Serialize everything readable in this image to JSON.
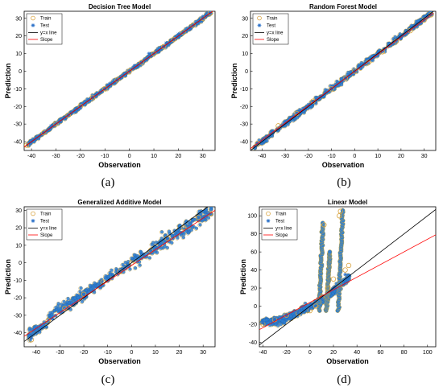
{
  "chart_data": [
    {
      "type": "scatter",
      "title": "Decision Tree Model",
      "xlabel": "Observation",
      "ylabel": "Prediction",
      "caption": "(a)",
      "xlim": [
        -43,
        35
      ],
      "ylim": [
        -45,
        34
      ],
      "xticks": [
        -40,
        -30,
        -20,
        -10,
        0,
        10,
        20,
        30
      ],
      "yticks": [
        -40,
        -30,
        -20,
        -10,
        0,
        10,
        20,
        30
      ],
      "legend_position": "top-left",
      "legend": [
        "Train",
        "Test",
        "y=x line",
        "Slope"
      ],
      "series": [
        {
          "name": "Train",
          "color": "#d9a441",
          "marker": "circle",
          "x": [
            -42,
            -35,
            -30,
            -25,
            -20,
            -15,
            -10,
            -5,
            0,
            5,
            10,
            14,
            18,
            22,
            26,
            30,
            33
          ],
          "y": [
            -42,
            -35,
            -30,
            -25,
            -20,
            -15,
            -10,
            -5,
            0,
            5,
            10,
            14,
            18,
            22,
            26,
            30,
            33
          ]
        },
        {
          "name": "Test",
          "color": "#2a70c8",
          "marker": "star",
          "x": [
            -32,
            -20,
            -8,
            2,
            8,
            12,
            15,
            20,
            25,
            30
          ],
          "y": [
            -31,
            -21,
            -7,
            3,
            10,
            11,
            16,
            21,
            24,
            31
          ]
        },
        {
          "name": "y=x line",
          "color": "#000000",
          "line": [
            [
              -43,
              -43
            ],
            [
              34,
              34
            ]
          ]
        },
        {
          "name": "Slope",
          "color": "#ff0000",
          "line": [
            [
              -43,
              -43
            ],
            [
              34,
              34
            ]
          ]
        }
      ]
    },
    {
      "type": "scatter",
      "title": "Random Forest Model",
      "xlabel": "Observation",
      "ylabel": "Prediction",
      "caption": "(b)",
      "xlim": [
        -45,
        35
      ],
      "ylim": [
        -45,
        34
      ],
      "xticks": [
        -40,
        -30,
        -20,
        -10,
        0,
        10,
        20,
        30
      ],
      "yticks": [
        -40,
        -30,
        -20,
        -10,
        0,
        10,
        20,
        30
      ],
      "legend_position": "top-left",
      "legend": [
        "Train",
        "Test",
        "y=x line",
        "Slope"
      ],
      "series": [
        {
          "name": "Train",
          "color": "#d9a441",
          "marker": "circle",
          "x": [
            -42,
            -33,
            -25,
            -18,
            -10,
            -4,
            0,
            6,
            12,
            18,
            24,
            30,
            33
          ],
          "y": [
            -41,
            -31,
            -24,
            -17,
            -10,
            -4,
            0,
            5,
            11,
            17,
            23,
            29,
            32
          ]
        },
        {
          "name": "Test",
          "color": "#2a70c8",
          "marker": "star",
          "x": [
            -42,
            -30,
            -20,
            -10,
            0,
            10,
            20,
            30
          ],
          "y": [
            -41,
            -29,
            -19,
            -10,
            0,
            10,
            19,
            29
          ]
        },
        {
          "name": "y=x line",
          "color": "#000000",
          "line": [
            [
              -45,
              -45
            ],
            [
              34,
              34
            ]
          ]
        },
        {
          "name": "Slope",
          "color": "#ff0000",
          "line": [
            [
              -45,
              -44
            ],
            [
              34,
              33
            ]
          ]
        }
      ]
    },
    {
      "type": "scatter",
      "title": "Generalized Additive Model",
      "xlabel": "Observation",
      "ylabel": "Prediction",
      "caption": "(c)",
      "xlim": [
        -45,
        35
      ],
      "ylim": [
        -48,
        32
      ],
      "xticks": [
        -40,
        -30,
        -20,
        -10,
        0,
        10,
        20,
        30
      ],
      "yticks": [
        -40,
        -30,
        -20,
        -10,
        0,
        10,
        20,
        30
      ],
      "legend_position": "top-left",
      "legend": [
        "Train",
        "Test",
        "y=x line",
        "Slope"
      ],
      "series": [
        {
          "name": "Train",
          "color": "#d9a441",
          "marker": "circle",
          "x": [
            -42,
            -35,
            -28,
            -20,
            -12,
            -5,
            0,
            8,
            15,
            22,
            28,
            33
          ],
          "y": [
            -44,
            -33,
            -26,
            -18,
            -11,
            -5,
            0,
            7,
            14,
            20,
            26,
            28
          ]
        },
        {
          "name": "Test",
          "color": "#2a70c8",
          "marker": "star",
          "x": [
            -42,
            -33,
            -25,
            -15,
            -5,
            5,
            15,
            25,
            32
          ],
          "y": [
            -43,
            -32,
            -24,
            -14,
            -5,
            5,
            14,
            23,
            28
          ]
        },
        {
          "name": "y=x line",
          "color": "#000000",
          "line": [
            [
              -45,
              -45
            ],
            [
              32,
              32
            ]
          ]
        },
        {
          "name": "Slope",
          "color": "#ff0000",
          "line": [
            [
              -45,
              -42
            ],
            [
              35,
              30
            ]
          ]
        }
      ]
    },
    {
      "type": "scatter",
      "title": "Linear Model",
      "xlabel": "Observation",
      "ylabel": "Prediction",
      "caption": "(d)",
      "xlim": [
        -43,
        107
      ],
      "ylim": [
        -45,
        110
      ],
      "xticks": [
        -40,
        -20,
        0,
        20,
        40,
        60,
        80,
        100
      ],
      "yticks": [
        -40,
        -20,
        0,
        20,
        40,
        60,
        80,
        100
      ],
      "legend_position": "top-left",
      "legend": [
        "Train",
        "Test",
        "y=x line",
        "Slope"
      ],
      "series": [
        {
          "name": "Train",
          "color": "#d9a441",
          "marker": "circle",
          "x": [
            -40,
            -30,
            -20,
            -10,
            0,
            5,
            10,
            12,
            15,
            20,
            25,
            26,
            30,
            33
          ],
          "y": [
            -20,
            -15,
            -10,
            -8,
            -5,
            0,
            10,
            90,
            20,
            30,
            100,
            105,
            40,
            45
          ]
        },
        {
          "name": "Test",
          "color": "#2a70c8",
          "marker": "star",
          "x": [
            -40,
            -30,
            -20,
            -10,
            0,
            10,
            20,
            30
          ],
          "y": [
            -18,
            -14,
            -10,
            -6,
            -2,
            8,
            20,
            35
          ]
        },
        {
          "name": "y=x line",
          "color": "#000000",
          "line": [
            [
              -43,
              -43
            ],
            [
              107,
              107
            ]
          ]
        },
        {
          "name": "Slope",
          "color": "#ff0000",
          "line": [
            [
              -43,
              -26
            ],
            [
              107,
              79
            ]
          ]
        }
      ]
    }
  ]
}
